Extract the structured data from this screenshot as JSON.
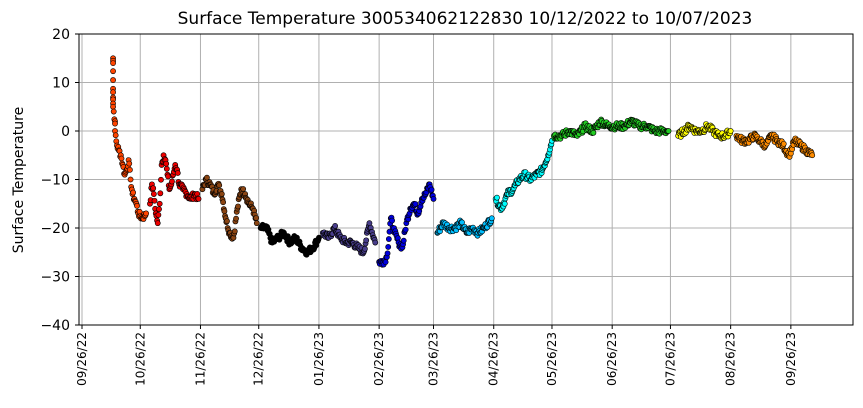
{
  "chart_data": {
    "type": "scatter",
    "title": "Surface Temperature 300534062122830  10/12/2022 to 10/07/2023",
    "xlabel": "",
    "ylabel": "Surface Temperature",
    "ylim": [
      -40,
      20
    ],
    "xlim": [
      "2022-09-26",
      "2023-10-28"
    ],
    "grid": true,
    "yticks": [
      "20",
      "10",
      "0",
      "−10",
      "−20",
      "−30",
      "−40"
    ],
    "ytick_values": [
      20,
      10,
      0,
      -10,
      -20,
      -30,
      -40
    ],
    "xticks": [
      "09/26/22",
      "10/26/22",
      "11/26/22",
      "12/26/22",
      "01/26/23",
      "02/26/23",
      "03/26/23",
      "04/26/23",
      "05/26/23",
      "06/26/23",
      "07/26/23",
      "08/26/23",
      "09/26/23"
    ],
    "xtick_dates": [
      "2022-09-26",
      "2022-10-26",
      "2022-11-26",
      "2022-12-26",
      "2023-01-26",
      "2023-02-26",
      "2023-03-26",
      "2023-04-26",
      "2023-05-26",
      "2023-06-26",
      "2023-07-26",
      "2023-08-26",
      "2023-09-26"
    ],
    "series": [
      {
        "color": "#ff4500",
        "points": [
          [
            "2022-10-12",
            15
          ],
          [
            "2022-10-12",
            14
          ],
          [
            "2022-10-12",
            10.5
          ],
          [
            "2022-10-12",
            8
          ],
          [
            "2022-10-12",
            6.5
          ],
          [
            "2022-10-12",
            5
          ],
          [
            "2022-10-13",
            2
          ],
          [
            "2022-10-13",
            0
          ],
          [
            "2022-10-14",
            -3
          ],
          [
            "2022-10-15",
            -4
          ],
          [
            "2022-10-16",
            -5
          ],
          [
            "2022-10-17",
            -7
          ],
          [
            "2022-10-18",
            -9
          ],
          [
            "2022-10-19",
            -8
          ],
          [
            "2022-10-20",
            -6
          ],
          [
            "2022-10-21",
            -10
          ],
          [
            "2022-10-22",
            -13
          ],
          [
            "2022-10-23",
            -14
          ],
          [
            "2022-10-24",
            -15
          ],
          [
            "2022-10-25",
            -17
          ],
          [
            "2022-10-27",
            -18
          ],
          [
            "2022-10-29",
            -17
          ]
        ]
      },
      {
        "color": "#ee0000",
        "points": [
          [
            "2022-10-31",
            -15
          ],
          [
            "2022-11-01",
            -11
          ],
          [
            "2022-11-02",
            -13
          ],
          [
            "2022-11-03",
            -17
          ],
          [
            "2022-11-04",
            -19
          ],
          [
            "2022-11-05",
            -15
          ],
          [
            "2022-11-06",
            -7
          ],
          [
            "2022-11-07",
            -5
          ],
          [
            "2022-11-08",
            -6
          ],
          [
            "2022-11-09",
            -9
          ],
          [
            "2022-11-10",
            -12
          ],
          [
            "2022-11-11",
            -11
          ],
          [
            "2022-11-12",
            -9
          ],
          [
            "2022-11-13",
            -7
          ],
          [
            "2022-11-14",
            -8
          ],
          [
            "2022-11-15",
            -11
          ],
          [
            "2022-11-17",
            -12
          ],
          [
            "2022-11-19",
            -13
          ],
          [
            "2022-11-21",
            -14
          ],
          [
            "2022-11-23",
            -13
          ],
          [
            "2022-11-25",
            -14
          ]
        ]
      },
      {
        "color": "#8b4513",
        "points": [
          [
            "2022-11-27",
            -12
          ],
          [
            "2022-11-29",
            -10
          ],
          [
            "2022-12-01",
            -11
          ],
          [
            "2022-12-03",
            -13
          ],
          [
            "2022-12-05",
            -11
          ],
          [
            "2022-12-07",
            -13
          ],
          [
            "2022-12-09",
            -18
          ],
          [
            "2022-12-11",
            -21
          ],
          [
            "2022-12-13",
            -22
          ],
          [
            "2022-12-15",
            -16
          ],
          [
            "2022-12-17",
            -12
          ],
          [
            "2022-12-19",
            -13
          ],
          [
            "2022-12-21",
            -15
          ],
          [
            "2022-12-23",
            -16
          ],
          [
            "2022-12-25",
            -19
          ]
        ]
      },
      {
        "color": "#000000",
        "points": [
          [
            "2022-12-27",
            -20
          ],
          [
            "2022-12-30",
            -20
          ],
          [
            "2023-01-02",
            -23
          ],
          [
            "2023-01-05",
            -22
          ],
          [
            "2023-01-08",
            -21
          ],
          [
            "2023-01-11",
            -23
          ],
          [
            "2023-01-14",
            -22
          ],
          [
            "2023-01-17",
            -24
          ],
          [
            "2023-01-20",
            -25
          ],
          [
            "2023-01-23",
            -24
          ],
          [
            "2023-01-26",
            -22
          ]
        ]
      },
      {
        "color": "#483d8b",
        "points": [
          [
            "2023-01-28",
            -21
          ],
          [
            "2023-01-31",
            -22
          ],
          [
            "2023-02-03",
            -20
          ],
          [
            "2023-02-06",
            -22
          ],
          [
            "2023-02-09",
            -23
          ],
          [
            "2023-02-12",
            -23
          ],
          [
            "2023-02-15",
            -24
          ],
          [
            "2023-02-18",
            -25
          ],
          [
            "2023-02-21",
            -19
          ],
          [
            "2023-02-24",
            -23
          ]
        ]
      },
      {
        "color": "#0000dd",
        "points": [
          [
            "2023-02-26",
            -27
          ],
          [
            "2023-02-28",
            -27
          ],
          [
            "2023-03-02",
            -26
          ],
          [
            "2023-03-04",
            -18
          ],
          [
            "2023-03-06",
            -21
          ],
          [
            "2023-03-08",
            -23
          ],
          [
            "2023-03-10",
            -24
          ],
          [
            "2023-03-12",
            -19
          ],
          [
            "2023-03-14",
            -16
          ],
          [
            "2023-03-16",
            -15
          ],
          [
            "2023-03-18",
            -17
          ],
          [
            "2023-03-20",
            -14
          ],
          [
            "2023-03-22",
            -13
          ],
          [
            "2023-03-24",
            -11
          ],
          [
            "2023-03-26",
            -14
          ]
        ]
      },
      {
        "color": "#00bfff",
        "points": [
          [
            "2023-03-28",
            -21
          ],
          [
            "2023-03-31",
            -19
          ],
          [
            "2023-04-03",
            -20
          ],
          [
            "2023-04-06",
            -20
          ],
          [
            "2023-04-09",
            -19
          ],
          [
            "2023-04-12",
            -21
          ],
          [
            "2023-04-15",
            -20
          ],
          [
            "2023-04-18",
            -21
          ],
          [
            "2023-04-21",
            -20
          ],
          [
            "2023-04-25",
            -18
          ]
        ]
      },
      {
        "color": "#00ffff",
        "points": [
          [
            "2023-04-27",
            -14
          ],
          [
            "2023-04-30",
            -16
          ],
          [
            "2023-05-03",
            -13
          ],
          [
            "2023-05-06",
            -12
          ],
          [
            "2023-05-09",
            -10
          ],
          [
            "2023-05-12",
            -9
          ],
          [
            "2023-05-15",
            -10
          ],
          [
            "2023-05-18",
            -9
          ],
          [
            "2023-05-21",
            -8
          ],
          [
            "2023-05-24",
            -5
          ],
          [
            "2023-05-26",
            -2
          ]
        ]
      },
      {
        "color": "#22cc22",
        "points": [
          [
            "2023-05-27",
            -1
          ],
          [
            "2023-05-31",
            -1
          ],
          [
            "2023-06-04",
            0
          ],
          [
            "2023-06-08",
            -1
          ],
          [
            "2023-06-12",
            1
          ],
          [
            "2023-06-16",
            0
          ],
          [
            "2023-06-20",
            2
          ],
          [
            "2023-06-24",
            1
          ],
          [
            "2023-06-28",
            1
          ],
          [
            "2023-07-02",
            1
          ],
          [
            "2023-07-06",
            2
          ],
          [
            "2023-07-10",
            1
          ],
          [
            "2023-07-14",
            1
          ],
          [
            "2023-07-18",
            0
          ],
          [
            "2023-07-22",
            0
          ],
          [
            "2023-07-25",
            0
          ]
        ]
      },
      {
        "color": "#ffff00",
        "points": [
          [
            "2023-07-30",
            -1
          ],
          [
            "2023-08-02",
            0
          ],
          [
            "2023-08-05",
            1
          ],
          [
            "2023-08-08",
            0
          ],
          [
            "2023-08-11",
            0
          ],
          [
            "2023-08-14",
            1
          ],
          [
            "2023-08-17",
            0
          ],
          [
            "2023-08-20",
            -1
          ],
          [
            "2023-08-23",
            -1
          ],
          [
            "2023-08-26",
            0
          ]
        ]
      },
      {
        "color": "#ff8c00",
        "points": [
          [
            "2023-08-29",
            -1
          ],
          [
            "2023-09-01",
            -2
          ],
          [
            "2023-09-04",
            -2
          ],
          [
            "2023-09-07",
            -1
          ],
          [
            "2023-09-10",
            -2
          ],
          [
            "2023-09-13",
            -3
          ],
          [
            "2023-09-16",
            -1
          ],
          [
            "2023-09-19",
            -2
          ],
          [
            "2023-09-22",
            -3
          ],
          [
            "2023-09-25",
            -5
          ],
          [
            "2023-09-28",
            -2
          ],
          [
            "2023-10-01",
            -3
          ],
          [
            "2023-10-04",
            -4
          ],
          [
            "2023-10-07",
            -5
          ]
        ]
      }
    ]
  }
}
